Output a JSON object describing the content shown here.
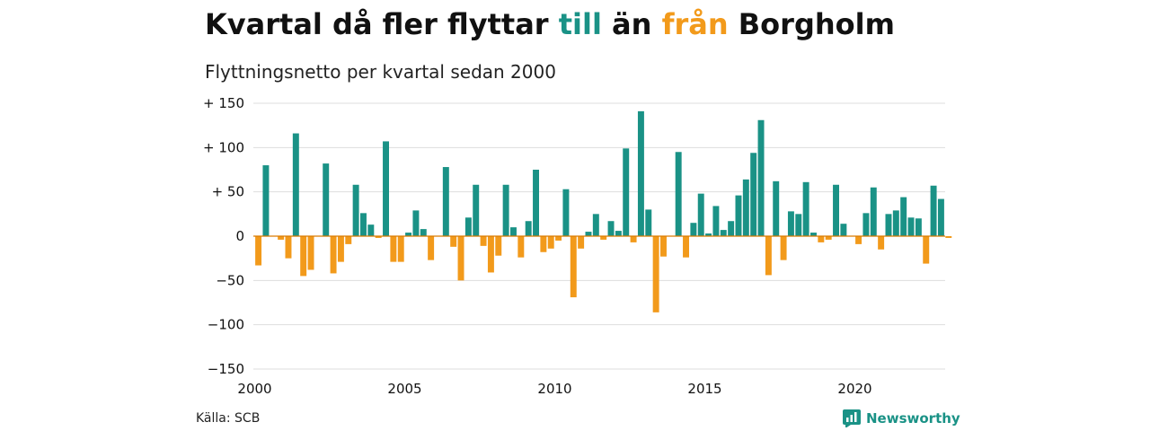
{
  "header": {
    "title_part1": "Kvartal då fler flyttar ",
    "title_till": "till",
    "title_part2": " än ",
    "title_fran": "från",
    "title_part3": " Borgholm",
    "subtitle": "Flyttningsnetto per kvartal sedan 2000"
  },
  "footer": {
    "source": "Källa: SCB",
    "brand": "Newsworthy",
    "brand_icon": "newsworthy-logo-icon"
  },
  "colors": {
    "positive": "#1a9286",
    "negative": "#f29a1b",
    "grid": "#dddddd",
    "baseline": "#d97a00",
    "text": "#111111"
  },
  "chart_data": {
    "type": "bar",
    "title": "Kvartal då fler flyttar till än från Borgholm",
    "subtitle": "Flyttningsnetto per kvartal sedan 2000",
    "xlabel": "",
    "ylabel": "",
    "ylim": [
      -150,
      150
    ],
    "y_ticks": [
      150,
      100,
      50,
      0,
      -50,
      -100,
      -150
    ],
    "y_tick_labels": [
      "+ 150",
      "+ 100",
      "+  50",
      "0",
      "−50",
      "−100",
      "−150"
    ],
    "x_ticks": [
      2000,
      2005,
      2010,
      2015,
      2020
    ],
    "x_tick_labels": [
      "2000",
      "2005",
      "2010",
      "2015",
      "2020"
    ],
    "x_start": 2000,
    "grid": true,
    "series": [
      {
        "values": [
          -33,
          80,
          0,
          -4,
          -25,
          116,
          -45,
          -38,
          0,
          82,
          -42,
          -29,
          -9,
          58,
          26,
          13,
          -2,
          107,
          -29,
          -29,
          4,
          29,
          8,
          -27,
          0,
          78,
          -12,
          -50,
          21,
          58,
          -11,
          -41,
          -22,
          58,
          10,
          -24,
          17,
          75,
          -18,
          -14,
          -5,
          53,
          -69,
          -14,
          5,
          25,
          -4,
          17,
          6,
          99,
          -7,
          141,
          30,
          -86,
          -23,
          0,
          95,
          -24,
          15,
          48,
          3,
          34,
          7,
          17,
          46,
          64,
          94,
          131,
          -44,
          62,
          -27,
          28,
          25,
          61,
          4,
          -7,
          -4,
          58,
          14,
          0,
          -9,
          26,
          55,
          -15,
          25,
          29,
          44,
          21,
          20,
          -31,
          57,
          42,
          -2
        ]
      }
    ]
  }
}
